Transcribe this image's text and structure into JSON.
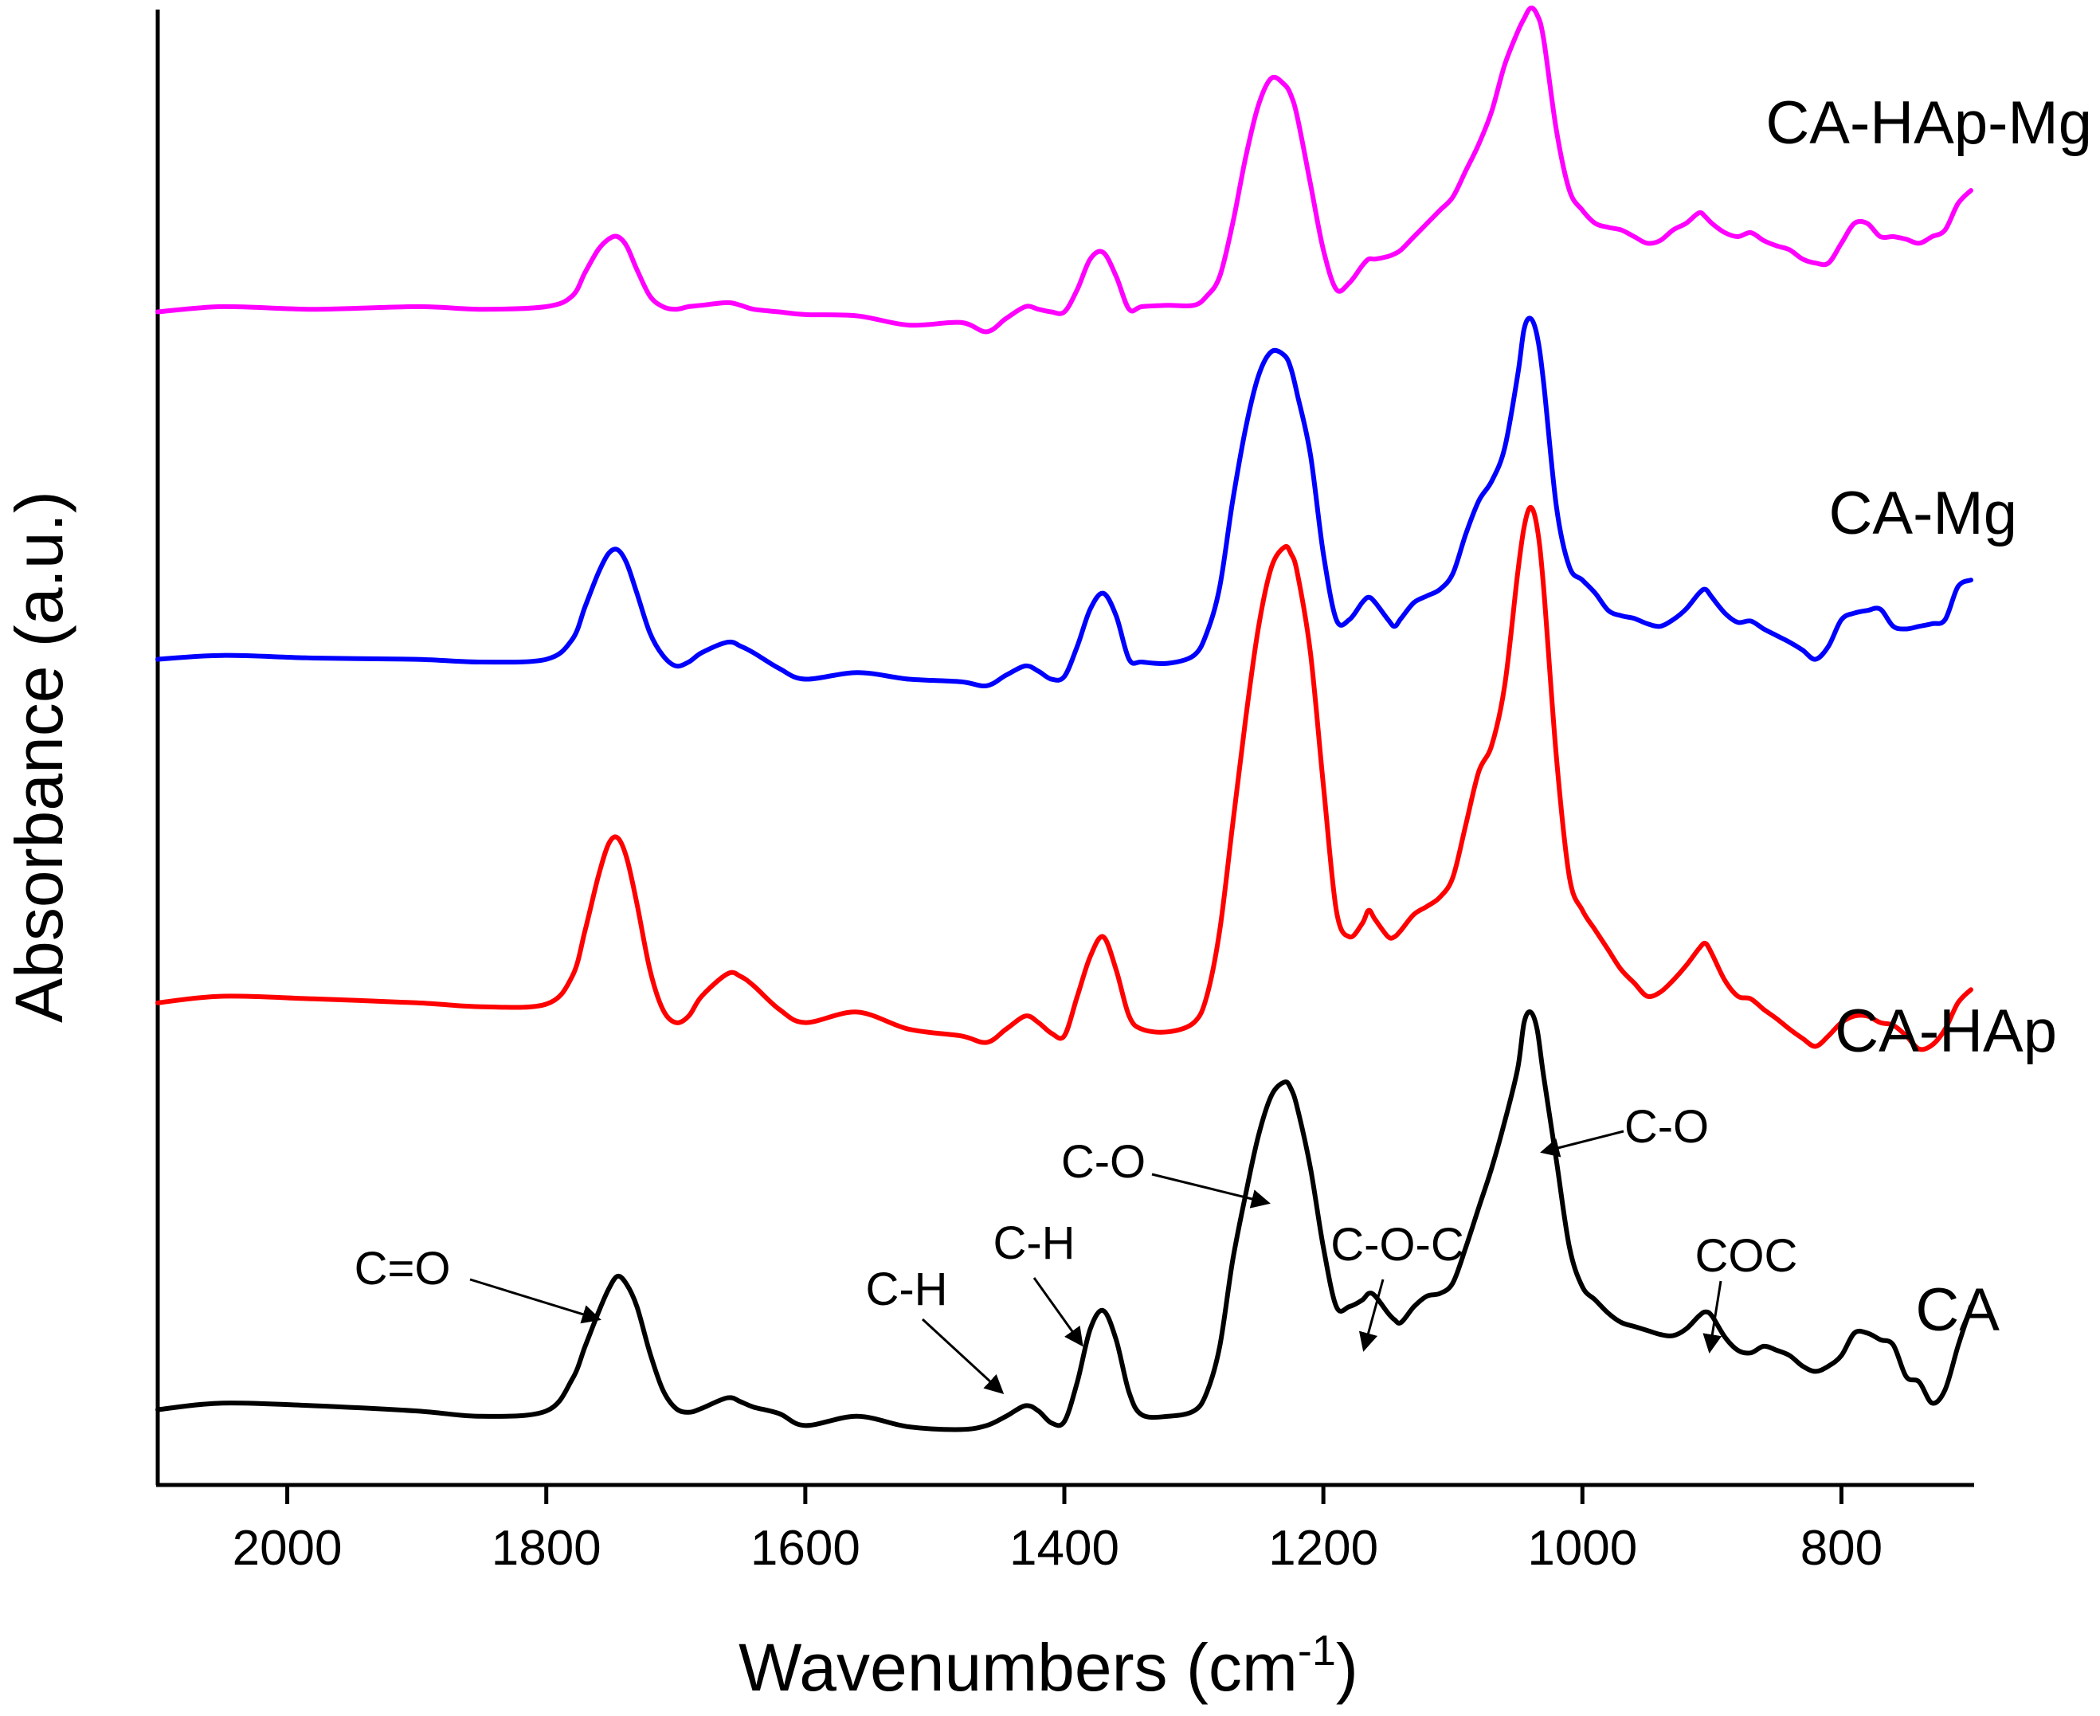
{
  "chart_data": {
    "type": "line",
    "xlabel": "Wavenumbers (cm",
    "xlabel_sup": "-1",
    "xlabel_close": ")",
    "ylabel": "Absorbance (a.u.)",
    "xlim": [
      2100,
      700
    ],
    "ylim": [
      0,
      110
    ],
    "x_ticks": [
      2000,
      1800,
      1600,
      1400,
      1200,
      1000,
      800
    ],
    "x_tick_labels": [
      "2000",
      "1800",
      "1600",
      "1400",
      "1200",
      "1000",
      "800"
    ],
    "y_ticks_shown": false,
    "series": [
      {
        "name": "CA",
        "color": "#000000",
        "x": [
          2100,
          2050,
          1980,
          1900,
          1850,
          1800,
          1780,
          1770,
          1760,
          1752,
          1745,
          1738,
          1730,
          1720,
          1710,
          1700,
          1690,
          1680,
          1660,
          1650,
          1640,
          1620,
          1600,
          1560,
          1520,
          1480,
          1460,
          1445,
          1430,
          1420,
          1410,
          1400,
          1390,
          1380,
          1370,
          1360,
          1350,
          1340,
          1320,
          1300,
          1290,
          1280,
          1270,
          1260,
          1250,
          1240,
          1230,
          1225,
          1220,
          1210,
          1200,
          1190,
          1180,
          1170,
          1165,
          1160,
          1150,
          1145,
          1140,
          1130,
          1120,
          1110,
          1100,
          1090,
          1080,
          1070,
          1060,
          1050,
          1045,
          1040,
          1035,
          1030,
          1020,
          1010,
          1000,
          990,
          980,
          970,
          960,
          950,
          940,
          930,
          920,
          910,
          905,
          900,
          890,
          880,
          870,
          860,
          850,
          840,
          830,
          820,
          810,
          800,
          790,
          780,
          770,
          760,
          750,
          740,
          730,
          720,
          710,
          700
        ],
        "y": [
          5.7,
          6.2,
          6.0,
          5.6,
          5.2,
          5.6,
          8.0,
          10.5,
          13.0,
          14.8,
          15.8,
          15.2,
          13.5,
          10.0,
          7.2,
          5.8,
          5.5,
          5.8,
          6.6,
          6.3,
          5.9,
          5.4,
          4.5,
          5.2,
          4.4,
          4.2,
          4.5,
          5.2,
          6.0,
          5.6,
          4.7,
          4.8,
          7.8,
          11.8,
          13.2,
          11.0,
          7.0,
          5.3,
          5.2,
          5.6,
          7.0,
          10.5,
          17.0,
          22.0,
          26.5,
          29.5,
          30.5,
          30.0,
          28.5,
          24.0,
          18.0,
          13.5,
          13.5,
          14.0,
          14.5,
          14.3,
          13.0,
          12.5,
          12.3,
          13.5,
          14.3,
          14.5,
          15.3,
          18.0,
          21.0,
          24.0,
          27.5,
          31.5,
          35.0,
          35.8,
          34.5,
          31.0,
          24.5,
          18.0,
          15.0,
          14.0,
          13.0,
          12.3,
          12.0,
          11.7,
          11.4,
          11.3,
          11.8,
          12.8,
          13.1,
          12.8,
          11.2,
          10.2,
          10.0,
          10.5,
          10.2,
          9.8,
          9.0,
          8.6,
          9.0,
          9.8,
          11.5,
          11.5,
          11.0,
          10.6,
          8.2,
          7.8,
          6.2,
          7.2,
          10.5,
          13.5
        ]
      },
      {
        "name": "CA-HAp",
        "color": "#ff0000",
        "x": [
          2100,
          2050,
          1980,
          1900,
          1850,
          1800,
          1780,
          1770,
          1760,
          1752,
          1745,
          1738,
          1730,
          1720,
          1710,
          1700,
          1690,
          1680,
          1660,
          1650,
          1640,
          1620,
          1600,
          1560,
          1520,
          1480,
          1460,
          1445,
          1430,
          1420,
          1410,
          1400,
          1390,
          1380,
          1370,
          1360,
          1350,
          1340,
          1320,
          1300,
          1290,
          1280,
          1270,
          1260,
          1250,
          1240,
          1230,
          1225,
          1220,
          1210,
          1200,
          1190,
          1180,
          1170,
          1165,
          1160,
          1150,
          1145,
          1140,
          1130,
          1120,
          1110,
          1100,
          1090,
          1080,
          1070,
          1060,
          1050,
          1045,
          1040,
          1035,
          1030,
          1020,
          1010,
          1000,
          990,
          980,
          970,
          960,
          950,
          940,
          930,
          920,
          910,
          905,
          900,
          890,
          880,
          870,
          860,
          850,
          840,
          830,
          820,
          810,
          800,
          790,
          780,
          770,
          760,
          750,
          740,
          730,
          720,
          710,
          700
        ],
        "y": [
          36.5,
          37.0,
          36.8,
          36.5,
          36.2,
          36.4,
          38.5,
          42.0,
          46.0,
          48.5,
          49.0,
          47.5,
          44.0,
          39.0,
          36.0,
          35.0,
          35.5,
          37.0,
          38.7,
          38.5,
          37.8,
          36.0,
          35.0,
          35.8,
          34.5,
          34.0,
          33.5,
          34.5,
          35.5,
          35.0,
          34.2,
          34.0,
          37.0,
          40.0,
          41.5,
          39.0,
          35.5,
          34.5,
          34.3,
          35.0,
          37.0,
          42.0,
          50.0,
          58.0,
          65.0,
          69.5,
          71.0,
          70.5,
          69.0,
          63.0,
          53.0,
          43.5,
          41.5,
          42.5,
          43.5,
          42.8,
          41.5,
          41.5,
          42.0,
          43.2,
          43.8,
          44.5,
          46.0,
          50.0,
          54.0,
          56.0,
          60.5,
          69.0,
          72.5,
          74.0,
          72.5,
          68.0,
          55.0,
          46.0,
          43.5,
          42.0,
          40.5,
          39.0,
          38.0,
          37.0,
          37.3,
          38.2,
          39.3,
          40.6,
          41.0,
          40.2,
          38.2,
          37.0,
          36.8,
          36.0,
          35.3,
          34.5,
          33.8,
          33.2,
          34.0,
          35.0,
          35.5,
          35.5,
          35.0,
          34.8,
          34.0,
          33.0,
          33.3,
          34.5,
          36.5,
          37.5
        ]
      },
      {
        "name": "CA-Mg",
        "color": "#0000ff",
        "x": [
          2100,
          2050,
          1980,
          1900,
          1850,
          1800,
          1780,
          1770,
          1760,
          1752,
          1745,
          1738,
          1730,
          1720,
          1710,
          1700,
          1690,
          1680,
          1660,
          1650,
          1640,
          1620,
          1600,
          1560,
          1520,
          1480,
          1460,
          1445,
          1430,
          1420,
          1410,
          1400,
          1390,
          1380,
          1370,
          1360,
          1350,
          1340,
          1320,
          1300,
          1290,
          1280,
          1270,
          1260,
          1250,
          1240,
          1230,
          1225,
          1220,
          1210,
          1200,
          1190,
          1180,
          1170,
          1165,
          1160,
          1150,
          1145,
          1140,
          1130,
          1120,
          1110,
          1100,
          1090,
          1080,
          1070,
          1060,
          1050,
          1045,
          1040,
          1035,
          1030,
          1020,
          1010,
          1000,
          990,
          980,
          970,
          960,
          950,
          940,
          930,
          920,
          910,
          905,
          900,
          890,
          880,
          870,
          860,
          850,
          840,
          830,
          820,
          810,
          800,
          790,
          780,
          770,
          760,
          750,
          740,
          730,
          720,
          710,
          700
        ],
        "y": [
          62.5,
          62.8,
          62.6,
          62.5,
          62.3,
          62.5,
          64.0,
          66.5,
          69.0,
          70.5,
          70.8,
          69.8,
          67.5,
          64.5,
          62.8,
          62.0,
          62.3,
          63.0,
          63.8,
          63.5,
          63.0,
          61.8,
          61.0,
          61.5,
          61.0,
          60.8,
          60.5,
          61.3,
          62.0,
          61.6,
          61.0,
          61.2,
          63.5,
          66.3,
          67.5,
          65.8,
          62.5,
          62.3,
          62.2,
          62.8,
          64.5,
          68.0,
          74.5,
          80.0,
          84.0,
          85.8,
          85.5,
          84.5,
          82.5,
          78.0,
          70.5,
          65.5,
          65.5,
          66.8,
          67.2,
          66.8,
          65.5,
          65.0,
          65.6,
          66.8,
          67.3,
          67.8,
          69.0,
          72.0,
          74.5,
          76.0,
          78.5,
          84.0,
          87.5,
          88.3,
          87.0,
          83.5,
          74.0,
          69.5,
          68.5,
          67.5,
          66.2,
          65.8,
          65.6,
          65.2,
          65.0,
          65.5,
          66.3,
          67.5,
          67.8,
          67.2,
          66.0,
          65.3,
          65.4,
          64.8,
          64.3,
          63.8,
          63.2,
          62.5,
          63.5,
          65.5,
          66.0,
          66.2,
          66.3,
          65.0,
          64.8,
          65.0,
          65.2,
          65.5,
          68.0,
          68.5
        ]
      },
      {
        "name": "CA-HAp-Mg",
        "color": "#ff00ff",
        "x": [
          2100,
          2050,
          1980,
          1900,
          1850,
          1800,
          1780,
          1770,
          1760,
          1752,
          1745,
          1738,
          1730,
          1720,
          1710,
          1700,
          1690,
          1680,
          1660,
          1650,
          1640,
          1620,
          1600,
          1560,
          1520,
          1480,
          1460,
          1445,
          1430,
          1420,
          1410,
          1400,
          1390,
          1380,
          1370,
          1360,
          1350,
          1340,
          1320,
          1300,
          1290,
          1280,
          1270,
          1260,
          1250,
          1240,
          1230,
          1225,
          1220,
          1210,
          1200,
          1190,
          1180,
          1170,
          1165,
          1160,
          1150,
          1145,
          1140,
          1130,
          1120,
          1110,
          1100,
          1090,
          1080,
          1070,
          1060,
          1050,
          1045,
          1040,
          1035,
          1030,
          1020,
          1010,
          1000,
          990,
          980,
          970,
          960,
          950,
          940,
          930,
          920,
          910,
          905,
          900,
          890,
          880,
          870,
          860,
          850,
          840,
          830,
          820,
          810,
          800,
          790,
          780,
          770,
          760,
          750,
          740,
          730,
          720,
          710,
          700
        ],
        "y": [
          88.8,
          89.2,
          89.0,
          89.2,
          89.0,
          89.2,
          90.0,
          91.8,
          93.5,
          94.3,
          94.5,
          93.8,
          92.0,
          90.0,
          89.2,
          89.0,
          89.2,
          89.3,
          89.5,
          89.3,
          89.0,
          88.8,
          88.6,
          88.5,
          87.8,
          88.0,
          87.3,
          88.3,
          89.2,
          89.0,
          88.8,
          88.8,
          90.5,
          92.8,
          93.3,
          91.5,
          89.0,
          89.2,
          89.3,
          89.3,
          90.0,
          91.5,
          95.5,
          100.5,
          104.5,
          106.5,
          106.0,
          105.2,
          103.5,
          98.5,
          93.5,
          90.5,
          91.0,
          92.3,
          92.8,
          92.8,
          93.0,
          93.2,
          93.5,
          94.5,
          95.5,
          96.5,
          97.5,
          99.5,
          101.5,
          104.0,
          107.5,
          110.0,
          111.0,
          111.8,
          111.3,
          109.5,
          102.5,
          98.0,
          96.5,
          95.5,
          95.2,
          95.0,
          94.5,
          94.0,
          94.2,
          95.0,
          95.5,
          96.3,
          96.0,
          95.5,
          94.8,
          94.5,
          94.8,
          94.2,
          93.8,
          93.5,
          92.8,
          92.5,
          92.5,
          94.0,
          95.5,
          95.5,
          94.5,
          94.5,
          94.3,
          94.0,
          94.5,
          95.0,
          97.0,
          98.0
        ]
      }
    ],
    "series_labels": [
      {
        "text": "CA",
        "series": "CA"
      },
      {
        "text": "CA-HAp",
        "series": "CA-HAp"
      },
      {
        "text": "CA-Mg",
        "series": "CA-Mg"
      },
      {
        "text": "CA-HAp-Mg",
        "series": "CA-HAp-Mg"
      }
    ],
    "annotations": [
      {
        "text": "C=O",
        "target_x": 1748,
        "target_y": 15.8
      },
      {
        "text": "C-H",
        "target_x": 1432,
        "target_y": 6.0
      },
      {
        "text": "C-H",
        "target_x": 1378,
        "target_y": 12.3
      },
      {
        "text": "C-O",
        "target_x": 1232,
        "target_y": 30.5
      },
      {
        "text": "C-O-C",
        "target_x": 1166,
        "target_y": 14.3
      },
      {
        "text": "C-O",
        "target_x": 1042,
        "target_y": 35.8
      },
      {
        "text": "COC",
        "target_x": 905,
        "target_y": 13.1
      }
    ]
  }
}
